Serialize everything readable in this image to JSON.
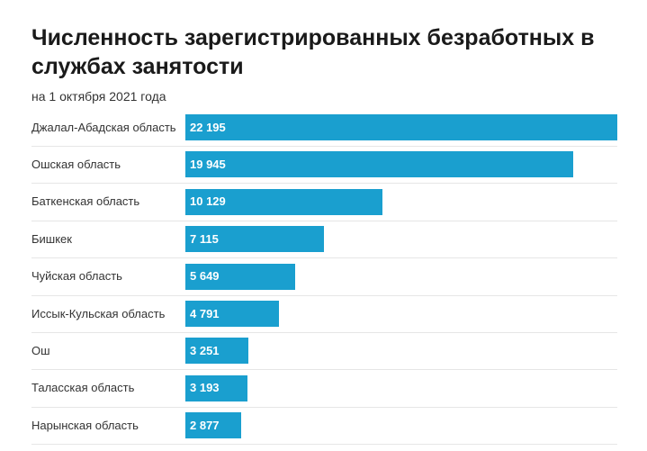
{
  "chart_data": {
    "type": "bar",
    "orientation": "horizontal",
    "title": "Численность зарегистрированных безработных в службах занятости",
    "subtitle": "на 1 октября 2021 года",
    "xlabel": "",
    "ylabel": "",
    "xlim": [
      0,
      22195
    ],
    "bar_color": "#1a9fcf",
    "categories": [
      "Джалал-Абадская область",
      "Ошская область",
      "Баткенская область",
      "Бишкек",
      "Чуйская область",
      "Иссык-Кульская область",
      "Ош",
      "Таласская область",
      "Нарынская область"
    ],
    "values": [
      22195,
      19945,
      10129,
      7115,
      5649,
      4791,
      3251,
      3193,
      2877
    ],
    "value_labels": [
      "22 195",
      "19 945",
      "10 129",
      "7 115",
      "5 649",
      "4 791",
      "3 251",
      "3 193",
      "2 877"
    ]
  }
}
